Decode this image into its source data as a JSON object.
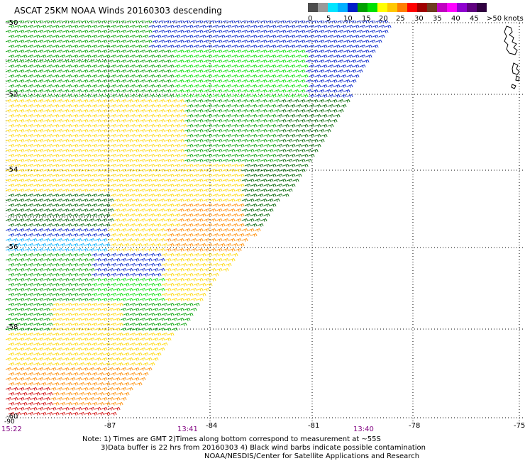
{
  "title": "ASCAT 25KM NOAA Winds 20160303 descending",
  "legend": {
    "labels": [
      "0",
      "5",
      "10",
      "15",
      "20",
      "25",
      "30",
      "35",
      "40",
      "45",
      ">50 knots"
    ],
    "colors": [
      "#4d4d4d",
      "#9a9a9a",
      "#00e5ff",
      "#00b0ff",
      "#0020c8",
      "#00a000",
      "#00e000",
      "#ffff00",
      "#ffc800",
      "#ff7f00",
      "#ff0000",
      "#a00000",
      "#6e3b1f",
      "#c000c0",
      "#ff00ff",
      "#9000d0",
      "#600080",
      "#300040"
    ]
  },
  "map": {
    "lat_labels": [
      "-50",
      "-52",
      "-54",
      "-56",
      "-58",
      "-60"
    ],
    "lon_labels": [
      "-87",
      "-84",
      "-81",
      "-78",
      "-75"
    ],
    "time_labels": [
      "15:22",
      "13:41",
      "13:40"
    ],
    "corner_lon_label": "-90",
    "barb_colors": {
      "calm": "#000000",
      "green": "#00a000",
      "lightgreen": "#00e000",
      "blue": "#0020c8",
      "lightblue": "#00b0ff",
      "yellow": "#ffd700",
      "orange": "#ff8c00",
      "red": "#d00000",
      "darkgreen": "#006400"
    }
  },
  "notes": [
    "Note: 1) Times are GMT 2)Times along bottom correspond to measurement at ~55S",
    "3)Data buffer is 22 hrs from 20160303 4) Black wind barbs indicate possible contamination",
    "NOAA/NESDIS/Center for Satellite Applications and Research"
  ]
}
